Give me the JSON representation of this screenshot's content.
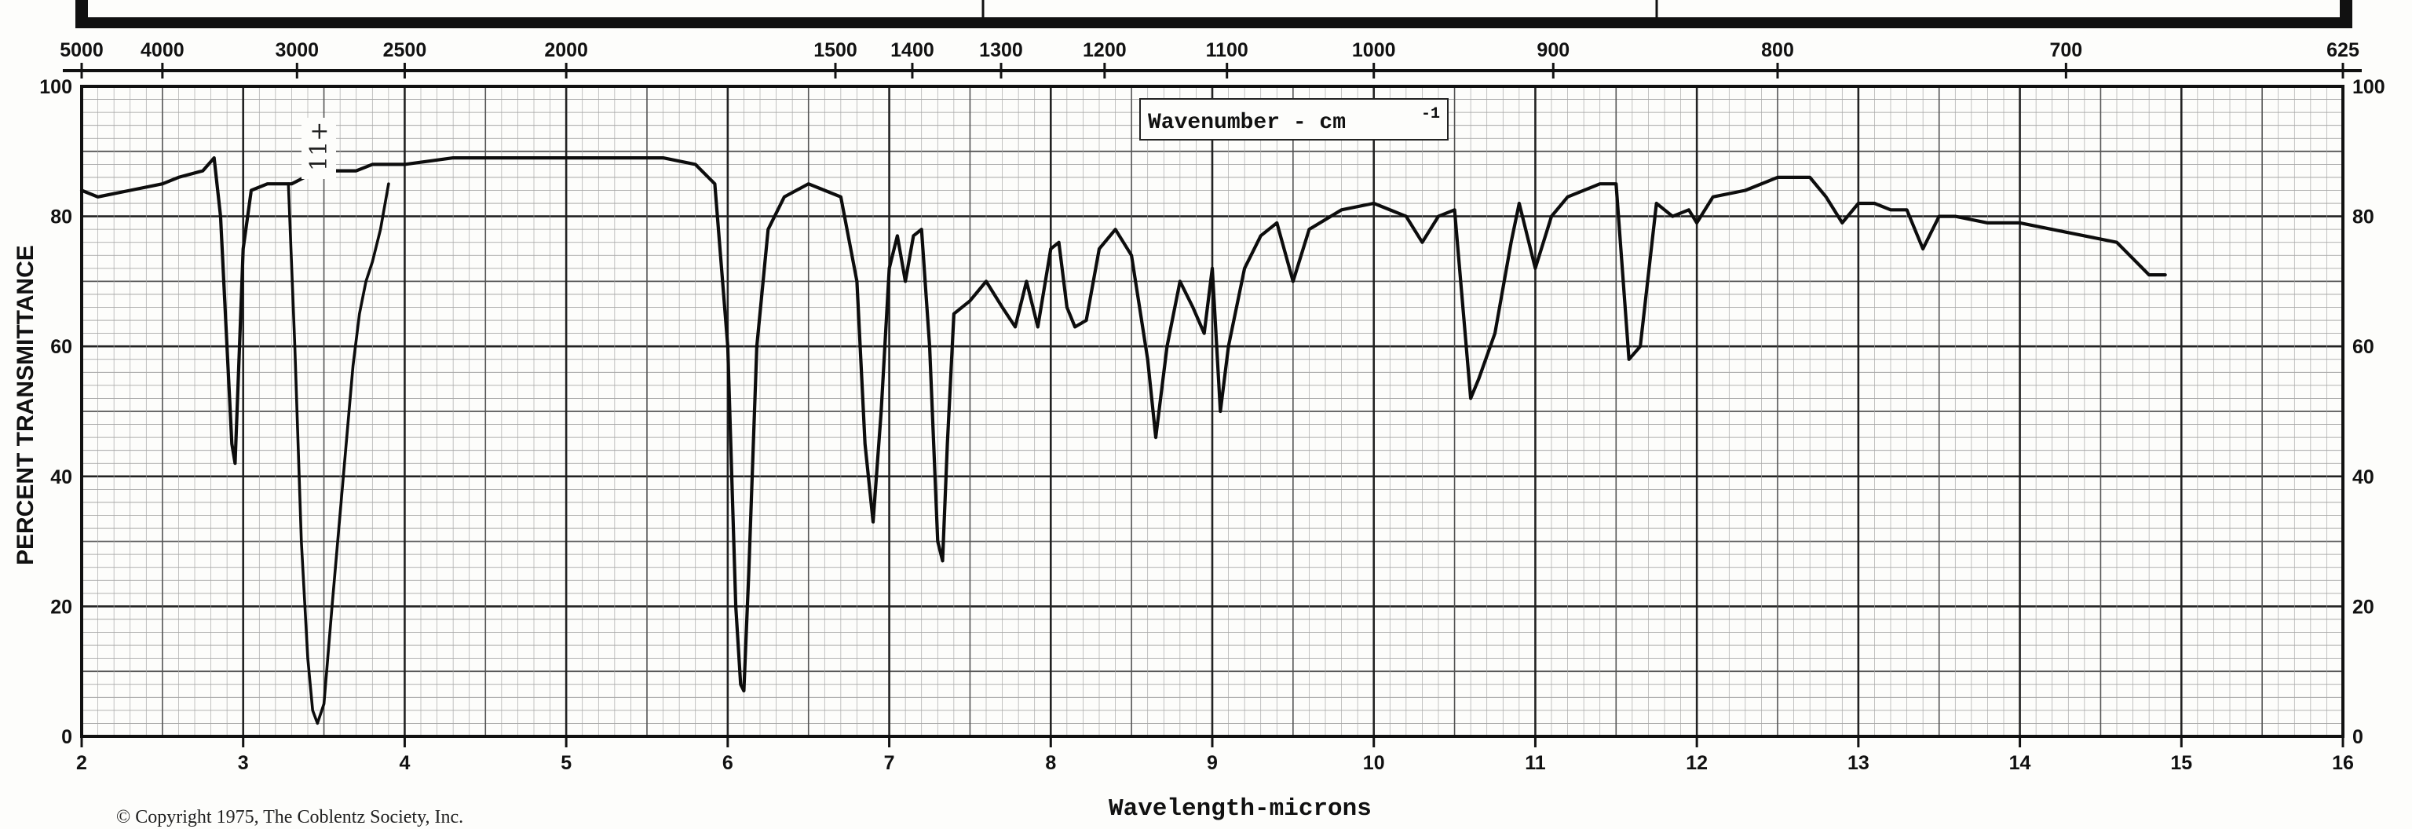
{
  "chart_data": {
    "type": "line",
    "title": "",
    "top_label": "Wavenumber - cm",
    "top_label_superscript": "-1",
    "xlabel": "Wavelength-microns",
    "ylabel": "PERCENT TRANSMITTANCE",
    "xlim": [
      2,
      16
    ],
    "ylim": [
      0,
      100
    ],
    "x_ticks": [
      "2",
      "3",
      "4",
      "5",
      "6",
      "7",
      "8",
      "9",
      "10",
      "11",
      "12",
      "13",
      "14",
      "15",
      "16"
    ],
    "y_ticks": [
      "0",
      "20",
      "40",
      "60",
      "80",
      "100"
    ],
    "wavenumber_ticks": [
      "5000",
      "4000",
      "3000",
      "2500",
      "2000",
      "1500",
      "1400",
      "1300",
      "1200",
      "1100",
      "1000",
      "900",
      "800",
      "700",
      "625"
    ],
    "handwritten_note": "11+",
    "copyright": "© Copyright 1975, The Coblentz Society, Inc.",
    "series": [
      {
        "x": [
          2.0,
          2.1,
          2.3,
          2.5,
          2.6,
          2.75,
          2.82,
          2.86,
          2.9,
          2.93,
          2.95,
          2.97,
          3.0,
          3.05,
          3.15,
          3.3,
          3.38,
          3.42,
          3.46,
          3.5,
          3.55,
          3.6,
          3.7,
          3.8,
          3.9,
          4.0,
          4.3,
          4.6,
          5.0,
          5.3,
          5.6,
          5.8,
          5.92,
          6.0,
          6.05,
          6.08,
          6.1,
          6.13,
          6.18,
          6.25,
          6.35,
          6.5,
          6.6,
          6.7,
          6.8,
          6.85,
          6.9,
          6.95,
          7.0,
          7.05,
          7.1,
          7.15,
          7.2,
          7.25,
          7.3,
          7.33,
          7.36,
          7.4,
          7.5,
          7.6,
          7.7,
          7.78,
          7.85,
          7.92,
          8.0,
          8.05,
          8.1,
          8.15,
          8.22,
          8.3,
          8.4,
          8.5,
          8.6,
          8.65,
          8.72,
          8.8,
          8.88,
          8.95,
          9.0,
          9.05,
          9.1,
          9.2,
          9.3,
          9.4,
          9.5,
          9.6,
          9.8,
          10.0,
          10.2,
          10.3,
          10.4,
          10.5,
          10.6,
          10.65,
          10.75,
          10.85,
          10.9,
          11.0,
          11.1,
          11.2,
          11.4,
          11.5,
          11.58,
          11.65,
          11.75,
          11.85,
          11.95,
          12.0,
          12.1,
          12.3,
          12.5,
          12.7,
          12.8,
          12.9,
          13.0,
          13.1,
          13.2,
          13.3,
          13.4,
          13.5,
          13.6,
          13.8,
          14.0,
          14.2,
          14.4,
          14.6,
          14.8,
          14.9
        ],
        "y": [
          84,
          83,
          84,
          85,
          86,
          87,
          89,
          80,
          60,
          45,
          42,
          55,
          75,
          84,
          85,
          85,
          86,
          86,
          86,
          87,
          87,
          87,
          87,
          88,
          88,
          88,
          89,
          89,
          89,
          89,
          89,
          88,
          85,
          60,
          20,
          8,
          7,
          25,
          60,
          78,
          83,
          85,
          84,
          83,
          70,
          45,
          33,
          50,
          72,
          77,
          70,
          77,
          78,
          60,
          30,
          27,
          45,
          65,
          67,
          70,
          66,
          63,
          70,
          63,
          75,
          76,
          66,
          63,
          64,
          75,
          78,
          74,
          58,
          46,
          60,
          70,
          66,
          62,
          72,
          50,
          60,
          72,
          77,
          79,
          70,
          78,
          81,
          82,
          80,
          76,
          80,
          81,
          52,
          55,
          62,
          76,
          82,
          72,
          80,
          83,
          85,
          85,
          58,
          60,
          82,
          80,
          81,
          79,
          83,
          84,
          86,
          86,
          83,
          79,
          82,
          82,
          81,
          81,
          75,
          80,
          80,
          79,
          79,
          78,
          77,
          76,
          71,
          71
        ]
      },
      {
        "x": [
          3.28,
          3.32,
          3.36,
          3.4,
          3.43,
          3.46,
          3.5,
          3.55,
          3.62,
          3.68,
          3.72,
          3.76,
          3.8,
          3.85,
          3.9
        ],
        "y": [
          85,
          60,
          30,
          12,
          4,
          2,
          5,
          20,
          40,
          57,
          65,
          70,
          73,
          78,
          85
        ]
      }
    ]
  }
}
